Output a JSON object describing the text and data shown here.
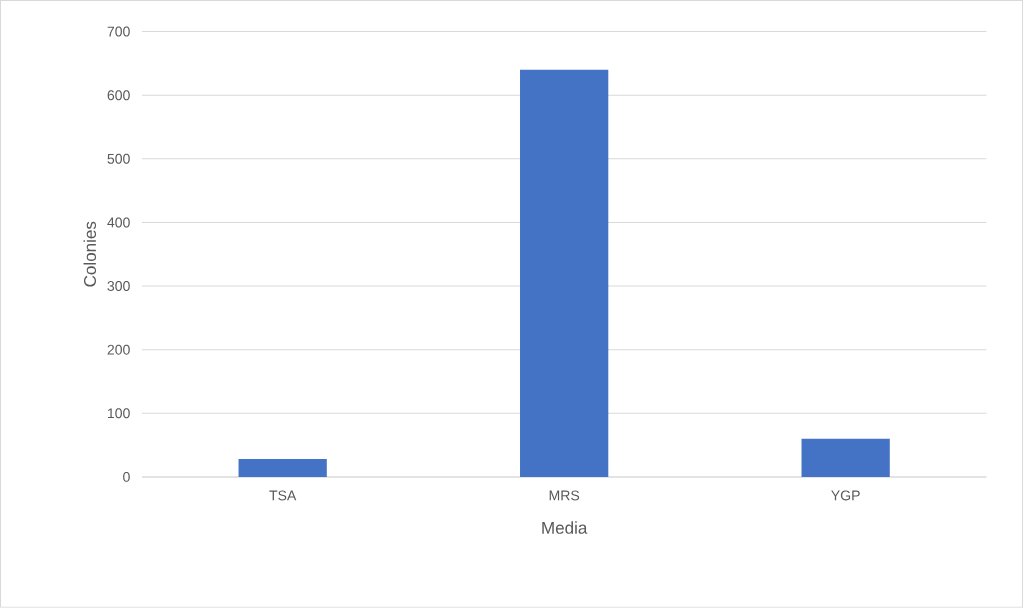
{
  "chart_data": {
    "type": "bar",
    "xlabel": "Media",
    "ylabel": "Colonies",
    "categories": [
      "TSA",
      "MRS",
      "YGP"
    ],
    "values": [
      28,
      640,
      60
    ],
    "color": "#4472c4",
    "ylim": [
      0,
      700
    ],
    "yticks": [
      0,
      100,
      200,
      300,
      400,
      500,
      600,
      700
    ],
    "grid": "y"
  }
}
